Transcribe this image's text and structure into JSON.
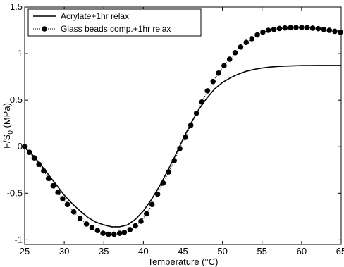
{
  "chart_data": {
    "type": "line",
    "title": "",
    "xlabel": "Temperature (°C)",
    "ylabel_main": "F/S",
    "ylabel_sub": "0",
    "ylabel_unit": " (MPa)",
    "xlim": [
      25,
      65
    ],
    "ylim": [
      -1.05,
      1.5
    ],
    "xticks": [
      25,
      30,
      35,
      40,
      45,
      50,
      55,
      60,
      65
    ],
    "xtick_labels": [
      "25",
      "30",
      "35",
      "40",
      "45",
      "50",
      "55",
      "60",
      "65"
    ],
    "yticks": [
      -1,
      -0.5,
      0,
      0.5,
      1,
      1.5
    ],
    "ytick_labels": [
      "-1",
      "-0.5",
      "0",
      "0.5",
      "1",
      "1.5"
    ],
    "grid": false,
    "legend_position": "top-left",
    "series": [
      {
        "name": "Acrylate+1hr relax",
        "style": "solid",
        "color": "#000000",
        "x": [
          25.0,
          26.0,
          27.0,
          28.0,
          29.0,
          30.0,
          31.0,
          32.0,
          33.0,
          34.0,
          35.0,
          36.0,
          37.0,
          38.0,
          39.0,
          40.0,
          41.0,
          42.0,
          43.0,
          44.0,
          45.0,
          46.0,
          47.0,
          48.0,
          49.0,
          50.0,
          51.0,
          52.0,
          53.0,
          54.0,
          55.0,
          56.0,
          57.0,
          58.0,
          59.0,
          60.0,
          61.0,
          62.0,
          63.0,
          64.0,
          65.0
        ],
        "y": [
          -0.01,
          -0.09,
          -0.19,
          -0.3,
          -0.41,
          -0.52,
          -0.61,
          -0.69,
          -0.76,
          -0.81,
          -0.84,
          -0.86,
          -0.86,
          -0.84,
          -0.78,
          -0.69,
          -0.57,
          -0.43,
          -0.27,
          -0.1,
          0.08,
          0.25,
          0.4,
          0.52,
          0.62,
          0.69,
          0.74,
          0.78,
          0.81,
          0.83,
          0.845,
          0.855,
          0.862,
          0.866,
          0.869,
          0.871,
          0.872,
          0.873,
          0.873,
          0.873,
          0.873
        ]
      },
      {
        "name": "Glass beads comp.+1hr relax",
        "style": "dotted-with-markers",
        "color": "#000000",
        "x": [
          25.0,
          25.6,
          26.2,
          26.8,
          27.4,
          28.0,
          28.6,
          29.2,
          29.8,
          30.4,
          31.2,
          32.0,
          32.8,
          33.5,
          34.2,
          34.9,
          35.6,
          36.3,
          37.0,
          37.6,
          38.3,
          39.0,
          39.7,
          40.4,
          41.1,
          41.8,
          42.5,
          43.2,
          43.9,
          44.6,
          45.3,
          46.0,
          46.7,
          47.4,
          48.1,
          48.8,
          49.5,
          50.2,
          50.9,
          51.6,
          52.3,
          53.0,
          53.7,
          54.4,
          55.1,
          55.8,
          56.5,
          57.2,
          57.9,
          58.6,
          59.3,
          60.0,
          60.7,
          61.4,
          62.1,
          62.8,
          63.5,
          64.2,
          64.9
        ],
        "y": [
          0.0,
          -0.06,
          -0.12,
          -0.19,
          -0.26,
          -0.34,
          -0.42,
          -0.49,
          -0.56,
          -0.62,
          -0.7,
          -0.77,
          -0.83,
          -0.87,
          -0.9,
          -0.93,
          -0.94,
          -0.94,
          -0.93,
          -0.92,
          -0.89,
          -0.85,
          -0.8,
          -0.72,
          -0.62,
          -0.51,
          -0.39,
          -0.27,
          -0.15,
          -0.02,
          0.1,
          0.23,
          0.36,
          0.48,
          0.6,
          0.7,
          0.79,
          0.87,
          0.94,
          1.01,
          1.07,
          1.12,
          1.16,
          1.2,
          1.23,
          1.25,
          1.26,
          1.27,
          1.275,
          1.278,
          1.28,
          1.28,
          1.278,
          1.274,
          1.268,
          1.26,
          1.25,
          1.24,
          1.23
        ]
      }
    ]
  }
}
